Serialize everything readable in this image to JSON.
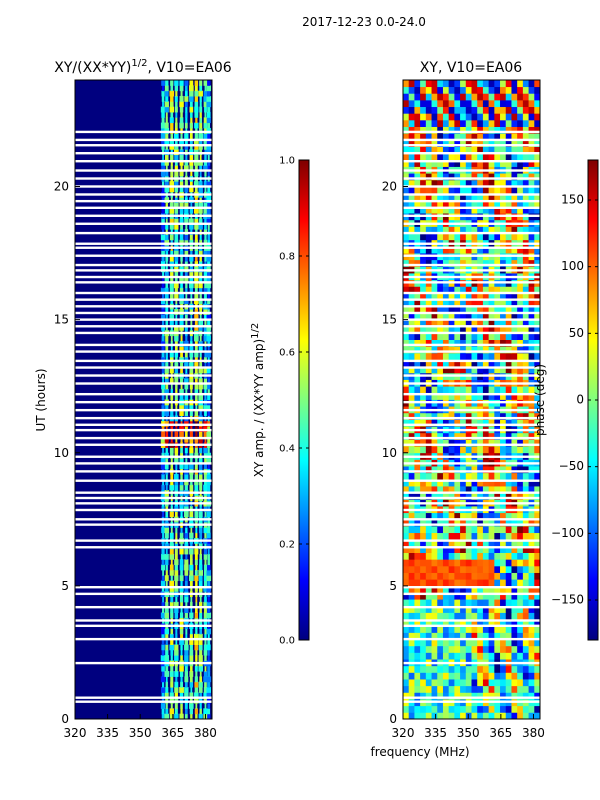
{
  "figure": {
    "suptitle": "2017-12-23 0.0-24.0"
  },
  "chart_data": [
    {
      "type": "heatmap",
      "panel": "left",
      "title": "XY/(XX*YY)",
      "title_sup": "1/2",
      "title_suffix": ", V10=EA06",
      "ylabel": "UT (hours)",
      "xlabel": "",
      "xlim": [
        320,
        383
      ],
      "ylim": [
        0,
        24
      ],
      "xticks": [
        320,
        335,
        350,
        365,
        380
      ],
      "yticks": [
        0,
        5,
        10,
        15,
        20
      ],
      "colorbar": {
        "label": "XY amp. / (XX*YY amp)",
        "label_sup": "1/2",
        "range": [
          0.0,
          1.0
        ],
        "ticks": [
          "0.0",
          "0.2",
          "0.4",
          "0.6",
          "0.8",
          "1.0"
        ],
        "colormap": "jet"
      },
      "flagged_gap_hours": [
        0.65,
        0.8,
        2.1,
        3.0,
        3.5,
        3.7,
        4.2,
        4.7,
        4.95,
        6.45,
        6.7,
        7.3,
        7.5,
        7.85,
        8.1,
        8.3,
        8.5,
        8.95,
        9.3,
        9.6,
        9.85,
        10.3,
        10.55,
        10.85,
        11.05,
        11.3,
        11.6,
        11.9,
        12.2,
        12.6,
        12.9,
        13.2,
        13.45,
        13.8,
        14.05,
        14.5,
        14.75,
        15.0,
        15.25,
        15.5,
        15.75,
        16.0,
        16.4,
        16.6,
        16.85,
        17.05,
        17.4,
        17.7,
        17.85,
        18.25,
        18.6,
        18.9,
        19.2,
        19.45,
        19.7,
        20.0,
        20.3,
        20.6,
        20.95,
        21.25,
        21.55,
        21.75,
        22.05
      ]
    },
    {
      "type": "heatmap",
      "panel": "right",
      "title": "XY, V10=EA06",
      "ylabel": "",
      "xlabel": "frequency (MHz)",
      "xlim": [
        320,
        383
      ],
      "ylim": [
        0,
        24
      ],
      "xticks": [
        320,
        335,
        350,
        365,
        380
      ],
      "yticks": [
        0,
        5,
        10,
        15,
        20
      ],
      "colorbar": {
        "label": "phase (deg)",
        "range": [
          -180,
          180
        ],
        "ticks": [
          "150",
          "100",
          "50",
          "0",
          "−50",
          "−100",
          "−150"
        ],
        "colormap": "jet"
      },
      "flagged_gap_hours": [
        0.65,
        0.8,
        2.1,
        3.0,
        3.5,
        3.7,
        4.2,
        4.7,
        4.95,
        6.45,
        6.7,
        7.3,
        7.5,
        7.85,
        8.1,
        8.3,
        8.5,
        8.95,
        9.3,
        9.6,
        9.85,
        10.3,
        10.55,
        10.85,
        11.05,
        11.3,
        11.6,
        11.9,
        12.2,
        12.6,
        12.9,
        13.2,
        13.45,
        13.8,
        14.05,
        14.5,
        14.75,
        15.0,
        15.25,
        15.5,
        15.75,
        16.0,
        16.4,
        16.6,
        16.85,
        17.05,
        17.4,
        17.7,
        17.85,
        18.25,
        18.6,
        18.9,
        19.2,
        19.45,
        19.7,
        20.0,
        20.3,
        20.6,
        20.95,
        21.25,
        21.55,
        21.75,
        22.05
      ]
    }
  ],
  "colors": {
    "jet": [
      "#00007f",
      "#0000ff",
      "#007fff",
      "#00ffff",
      "#7fff7f",
      "#ffff00",
      "#ff7f00",
      "#ff0000",
      "#7f0000"
    ],
    "axes": "#000000",
    "background": "#ffffff"
  }
}
